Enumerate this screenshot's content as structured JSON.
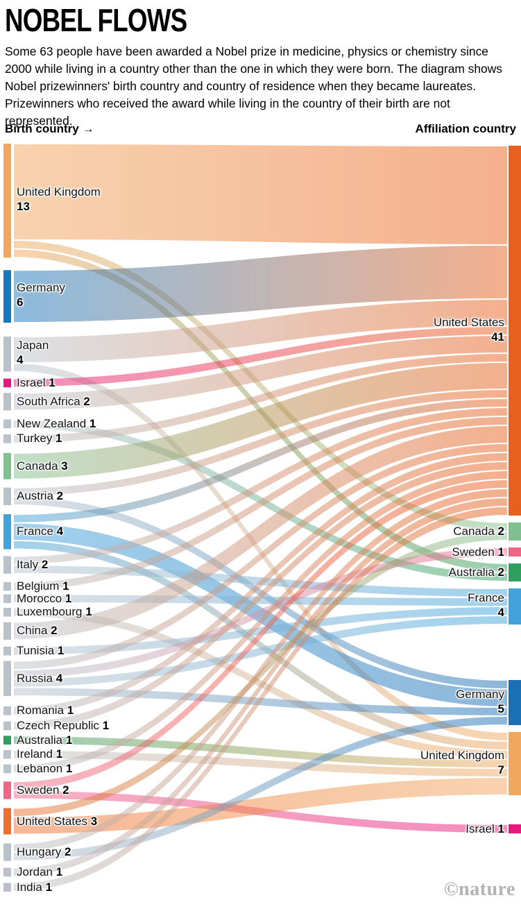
{
  "header": {
    "title": "NOBEL FLOWS",
    "description": "Some 63 people have been awarded a Nobel prize in medicine, physics or chemistry since 2000 while living in a country other than the one in which they were born. The diagram shows Nobel prizewinners' birth country and country of residence when they became laureates. Prizewinners who received the award while living in the country of their birth are not represented.",
    "left_axis_label": "Birth country",
    "left_axis_arrow": "→",
    "right_axis_label": "Affiliation country"
  },
  "footer": {
    "watermark": "©nature"
  },
  "chart_data": {
    "type": "sankey",
    "title": "Nobel flows",
    "unit": "laureates",
    "total": 63,
    "left_column_label": "Birth country",
    "right_column_label": "Affiliation country",
    "default_node_color": "#b9c2cb",
    "left_nodes": [
      {
        "name": "United Kingdom",
        "value": 13,
        "color": "#f2a75e",
        "stacked": true
      },
      {
        "name": "Germany",
        "value": 6,
        "color": "#1878be",
        "stacked": true
      },
      {
        "name": "Japan",
        "value": 4,
        "color": "#b9c2cb",
        "stacked": true
      },
      {
        "name": "Israel",
        "value": 1,
        "color": "#e8187d",
        "stacked": false
      },
      {
        "name": "South Africa",
        "value": 2,
        "color": "#b9c2cb",
        "stacked": false
      },
      {
        "name": "New Zealand",
        "value": 1,
        "color": "#b9c2cb",
        "stacked": false
      },
      {
        "name": "Turkey",
        "value": 1,
        "color": "#b9c2cb",
        "stacked": false
      },
      {
        "name": "Canada",
        "value": 3,
        "color": "#7fc08e",
        "stacked": false
      },
      {
        "name": "Austria",
        "value": 2,
        "color": "#b9c2cb",
        "stacked": false
      },
      {
        "name": "France",
        "value": 4,
        "color": "#42a3dc",
        "stacked": false
      },
      {
        "name": "Italy",
        "value": 2,
        "color": "#b9c2cb",
        "stacked": false
      },
      {
        "name": "Belgium",
        "value": 1,
        "color": "#b9c2cb",
        "stacked": false
      },
      {
        "name": "Morocco",
        "value": 1,
        "color": "#b9c2cb",
        "stacked": false
      },
      {
        "name": "Luxembourg",
        "value": 1,
        "color": "#b9c2cb",
        "stacked": false
      },
      {
        "name": "China",
        "value": 2,
        "color": "#b9c2cb",
        "stacked": false
      },
      {
        "name": "Tunisia",
        "value": 1,
        "color": "#b9c2cb",
        "stacked": false
      },
      {
        "name": "Russia",
        "value": 4,
        "color": "#b9c2cb",
        "stacked": false
      },
      {
        "name": "Romania",
        "value": 1,
        "color": "#b9c2cb",
        "stacked": false
      },
      {
        "name": "Czech Republic",
        "value": 1,
        "color": "#b9c2cb",
        "stacked": false
      },
      {
        "name": "Australia",
        "value": 1,
        "color": "#2f9e5e",
        "stacked": false
      },
      {
        "name": "Ireland",
        "value": 1,
        "color": "#b9c2cb",
        "stacked": false
      },
      {
        "name": "Lebanon",
        "value": 1,
        "color": "#b9c2cb",
        "stacked": false
      },
      {
        "name": "Sweden",
        "value": 2,
        "color": "#ef6586",
        "stacked": false
      },
      {
        "name": "United States",
        "value": 3,
        "color": "#ee6f2d",
        "stacked": false
      },
      {
        "name": "Hungary",
        "value": 2,
        "color": "#b9c2cb",
        "stacked": false
      },
      {
        "name": "Jordan",
        "value": 1,
        "color": "#b9c2cb",
        "stacked": false
      },
      {
        "name": "India",
        "value": 1,
        "color": "#b9c2cb",
        "stacked": false
      }
    ],
    "right_nodes": [
      {
        "name": "United States",
        "value": 41,
        "color": "#e8611c",
        "stacked": true
      },
      {
        "name": "Canada",
        "value": 2,
        "color": "#7fc08e",
        "stacked": false
      },
      {
        "name": "Sweden",
        "value": 1,
        "color": "#ef6586",
        "stacked": false
      },
      {
        "name": "Australia",
        "value": 2,
        "color": "#2f9e5e",
        "stacked": false
      },
      {
        "name": "France",
        "value": 4,
        "color": "#42a3dc",
        "stacked": true
      },
      {
        "name": "Germany",
        "value": 5,
        "color": "#1b6fb5",
        "stacked": true
      },
      {
        "name": "United Kingdom",
        "value": 7,
        "color": "#f2a75e",
        "stacked": true
      },
      {
        "name": "Israel",
        "value": 1,
        "color": "#e8187d",
        "stacked": false
      }
    ],
    "flows_note": "Individual flow values are not labelled in the figure; values below are visual estimates consistent with all node totals.",
    "flows": [
      {
        "source": "United Kingdom",
        "target": "United States",
        "value": 11
      },
      {
        "source": "United Kingdom",
        "target": "Canada",
        "value": 1
      },
      {
        "source": "United Kingdom",
        "target": "Australia",
        "value": 1
      },
      {
        "source": "Germany",
        "target": "United States",
        "value": 6
      },
      {
        "source": "Japan",
        "target": "United States",
        "value": 3
      },
      {
        "source": "Japan",
        "target": "United Kingdom",
        "value": 1
      },
      {
        "source": "Israel",
        "target": "United States",
        "value": 1
      },
      {
        "source": "South Africa",
        "target": "United States",
        "value": 2
      },
      {
        "source": "New Zealand",
        "target": "Australia",
        "value": 1
      },
      {
        "source": "Turkey",
        "target": "United States",
        "value": 1
      },
      {
        "source": "Canada",
        "target": "United States",
        "value": 3
      },
      {
        "source": "Austria",
        "target": "United States",
        "value": 1
      },
      {
        "source": "Austria",
        "target": "Germany",
        "value": 1
      },
      {
        "source": "France",
        "target": "United States",
        "value": 1
      },
      {
        "source": "France",
        "target": "Germany",
        "value": 2
      },
      {
        "source": "France",
        "target": "United Kingdom",
        "value": 1
      },
      {
        "source": "Italy",
        "target": "United States",
        "value": 1
      },
      {
        "source": "Italy",
        "target": "France",
        "value": 1
      },
      {
        "source": "Belgium",
        "target": "United States",
        "value": 1
      },
      {
        "source": "Morocco",
        "target": "France",
        "value": 1
      },
      {
        "source": "Luxembourg",
        "target": "United Kingdom",
        "value": 1
      },
      {
        "source": "China",
        "target": "United States",
        "value": 2
      },
      {
        "source": "Tunisia",
        "target": "France",
        "value": 1
      },
      {
        "source": "Russia",
        "target": "United States",
        "value": 1
      },
      {
        "source": "Russia",
        "target": "Sweden",
        "value": 1
      },
      {
        "source": "Russia",
        "target": "France",
        "value": 1
      },
      {
        "source": "Russia",
        "target": "Germany",
        "value": 1
      },
      {
        "source": "Romania",
        "target": "United States",
        "value": 1
      },
      {
        "source": "Czech Republic",
        "target": "United States",
        "value": 1
      },
      {
        "source": "Australia",
        "target": "United Kingdom",
        "value": 1
      },
      {
        "source": "Ireland",
        "target": "United Kingdom",
        "value": 1
      },
      {
        "source": "Lebanon",
        "target": "United States",
        "value": 1
      },
      {
        "source": "Sweden",
        "target": "United States",
        "value": 1
      },
      {
        "source": "Sweden",
        "target": "Israel",
        "value": 1
      },
      {
        "source": "United States",
        "target": "Canada",
        "value": 1
      },
      {
        "source": "United States",
        "target": "United Kingdom",
        "value": 2
      },
      {
        "source": "Hungary",
        "target": "United States",
        "value": 1
      },
      {
        "source": "Hungary",
        "target": "Germany",
        "value": 1
      },
      {
        "source": "Jordan",
        "target": "United States",
        "value": 1
      },
      {
        "source": "India",
        "target": "United States",
        "value": 1
      }
    ]
  }
}
